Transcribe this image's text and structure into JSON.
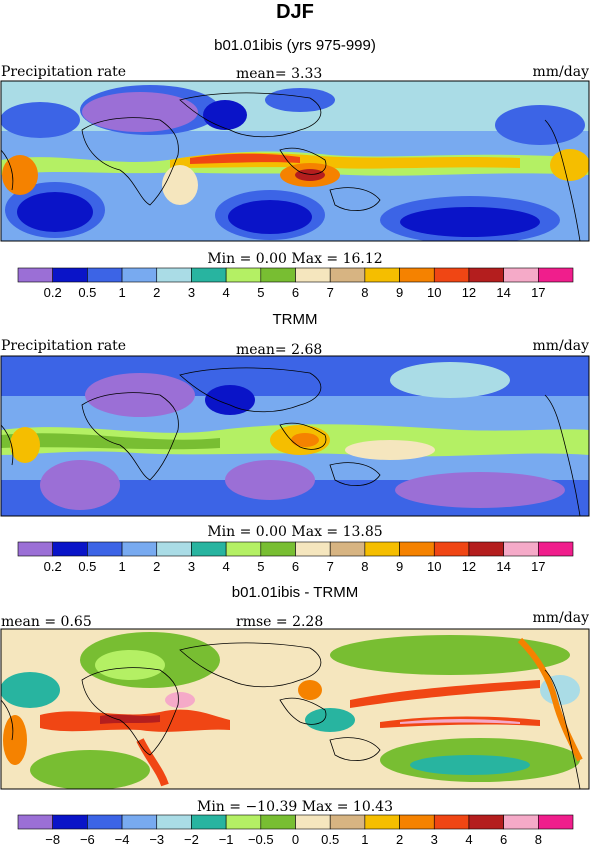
{
  "title": "DJF",
  "panels": [
    {
      "id": "model",
      "title": "b01.01ibis (yrs 975-999)",
      "left_label": "Precipitation rate",
      "center_label": "mean=   3.33",
      "right_label": "mm/day",
      "minmax": "Min =    0.00  Max =    16.12",
      "colorbar": {
        "colors": [
          "#9b6fd6",
          "#0a14c8",
          "#3c64e6",
          "#78aaf0",
          "#aadce6",
          "#28b4a0",
          "#b4f064",
          "#78be32",
          "#f5e6be",
          "#d7b482",
          "#f5be00",
          "#f58200",
          "#f04614",
          "#b41e1e",
          "#f5aac8",
          "#f01e8c"
        ],
        "ticks": [
          "0.2",
          "0.5",
          "1",
          "2",
          "3",
          "4",
          "5",
          "6",
          "7",
          "8",
          "9",
          "10",
          "12",
          "14",
          "17"
        ]
      }
    },
    {
      "id": "obs",
      "title": "TRMM",
      "left_label": "Precipitation rate",
      "center_label": "mean=   2.68",
      "right_label": "mm/day",
      "minmax": "Min =    0.00  Max =    13.85",
      "colorbar": {
        "colors": [
          "#9b6fd6",
          "#0a14c8",
          "#3c64e6",
          "#78aaf0",
          "#aadce6",
          "#28b4a0",
          "#b4f064",
          "#78be32",
          "#f5e6be",
          "#d7b482",
          "#f5be00",
          "#f58200",
          "#f04614",
          "#b41e1e",
          "#f5aac8",
          "#f01e8c"
        ],
        "ticks": [
          "0.2",
          "0.5",
          "1",
          "2",
          "3",
          "4",
          "5",
          "6",
          "7",
          "8",
          "9",
          "10",
          "12",
          "14",
          "17"
        ]
      }
    },
    {
      "id": "diff",
      "title": "b01.01ibis - TRMM",
      "left_label": "mean =    0.65",
      "center_label": "rmse =    2.28",
      "right_label": "mm/day",
      "minmax": "Min =  −10.39  Max =    10.43",
      "colorbar": {
        "colors": [
          "#9b6fd6",
          "#0a14c8",
          "#3c64e6",
          "#78aaf0",
          "#aadce6",
          "#28b4a0",
          "#b4f064",
          "#78be32",
          "#f5e6be",
          "#d7b482",
          "#f5be00",
          "#f58200",
          "#f04614",
          "#b41e1e",
          "#f5aac8",
          "#f01e8c"
        ],
        "ticks": [
          "−8",
          "−6",
          "−4",
          "−3",
          "−2",
          "−1",
          "−0.5",
          "0",
          "0.5",
          "1",
          "2",
          "3",
          "4",
          "6",
          "8"
        ]
      }
    }
  ]
}
